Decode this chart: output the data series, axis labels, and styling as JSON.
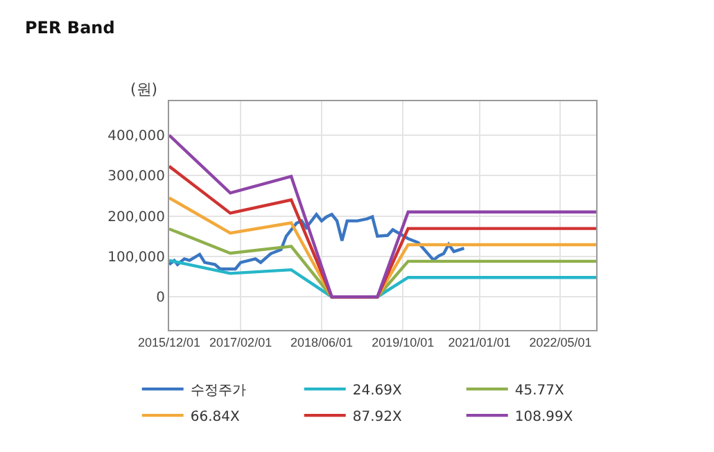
{
  "chart_data": {
    "type": "line",
    "title": "PER Band",
    "ylabel": "(원)",
    "xlim": [
      "2015-12-01",
      "2022-12-01"
    ],
    "ylim": [
      -82000,
      484000
    ],
    "xticks": [
      {
        "value": "2015-12-01",
        "label": "2015/12/01"
      },
      {
        "value": "2017-02-01",
        "label": "2017/02/01"
      },
      {
        "value": "2018-06-01",
        "label": "2018/06/01"
      },
      {
        "value": "2019-10-01",
        "label": "2019/10/01"
      },
      {
        "value": "2021-01-01",
        "label": "2021/01/01"
      },
      {
        "value": "2022-05-01",
        "label": "2022/05/01"
      }
    ],
    "yticks": [
      0,
      {
        "value": 100000,
        "label": "100,000"
      },
      {
        "value": 200000,
        "label": "200,000"
      },
      {
        "value": 300000,
        "label": "300,000"
      },
      {
        "value": 400000,
        "label": "400,000"
      }
    ],
    "grid": true,
    "legend": "bottom",
    "marker": "none",
    "line_style": "solid",
    "series": [
      {
        "name": "수정주가",
        "color": "#3a76c2",
        "x": [
          "2015-12",
          "2016-01",
          "2016-01-20",
          "2016-03",
          "2016-04",
          "2016-06",
          "2016-07",
          "2016-09",
          "2016-10",
          "2017-01",
          "2017-02",
          "2017-05",
          "2017-06",
          "2017-08",
          "2017-10",
          "2017-11",
          "2018-01",
          "2018-02",
          "2018-03",
          "2018-05",
          "2018-06",
          "2018-07",
          "2018-08",
          "2018-09",
          "2018-10",
          "2018-11",
          "2019-01",
          "2019-03",
          "2019-04",
          "2019-05",
          "2019-07",
          "2019-08",
          "2019-11",
          "2020-01",
          "2020-04",
          "2020-05",
          "2020-06",
          "2020-07",
          "2020-08",
          "2020-10"
        ],
        "values": [
          80000,
          90000,
          80000,
          94000,
          90000,
          105000,
          85000,
          80000,
          69000,
          69000,
          85000,
          94000,
          85000,
          107000,
          117000,
          150000,
          182000,
          188000,
          171000,
          204000,
          188000,
          198000,
          204000,
          188000,
          139000,
          188000,
          188000,
          193000,
          198000,
          150000,
          152000,
          166000,
          144000,
          134000,
          91000,
          101000,
          107000,
          130000,
          112000,
          120000
        ]
      },
      {
        "name": "24.69X",
        "color": "#26b6c9",
        "x": [
          "2015-12",
          "2016-12",
          "2017-12",
          "2018-08",
          "2019-05",
          "2019-11",
          "2022-12"
        ],
        "values": [
          90000,
          58000,
          67000,
          0,
          0,
          48000,
          48000
        ]
      },
      {
        "name": "45.77X",
        "color": "#8fb04c",
        "x": [
          "2015-12",
          "2016-12",
          "2017-12",
          "2018-08",
          "2019-05",
          "2019-11",
          "2022-12"
        ],
        "values": [
          168000,
          108000,
          125000,
          0,
          0,
          88000,
          88000
        ]
      },
      {
        "name": "66.84X",
        "color": "#f2a93b",
        "x": [
          "2015-12",
          "2016-12",
          "2017-12",
          "2018-08",
          "2019-05",
          "2019-11",
          "2022-12"
        ],
        "values": [
          245000,
          158000,
          183000,
          0,
          0,
          129000,
          129000
        ]
      },
      {
        "name": "87.92X",
        "color": "#cf3331",
        "x": [
          "2015-12",
          "2016-12",
          "2017-12",
          "2018-08",
          "2019-05",
          "2019-11",
          "2022-12"
        ],
        "values": [
          323000,
          207000,
          240000,
          0,
          0,
          169000,
          169000
        ]
      },
      {
        "name": "108.99X",
        "color": "#8e45a8",
        "x": [
          "2015-12",
          "2016-12",
          "2017-12",
          "2018-08",
          "2019-05",
          "2019-11",
          "2022-12"
        ],
        "values": [
          400000,
          257000,
          298000,
          0,
          0,
          210000,
          210000
        ]
      }
    ]
  }
}
